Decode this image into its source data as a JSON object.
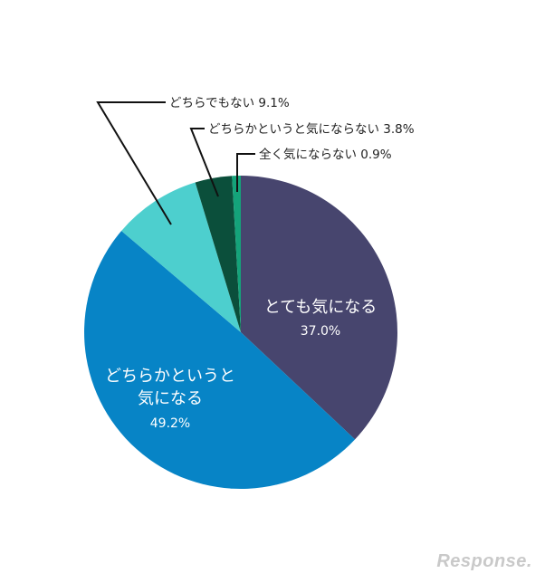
{
  "chart_data": {
    "type": "pie",
    "slices": [
      {
        "label": "とても気になる",
        "value": 37.0,
        "value_text": "37.0%",
        "color": "#47456e"
      },
      {
        "label": "どちらかというと気になる",
        "value": 49.2,
        "value_text": "49.2%",
        "color": "#0784c6"
      },
      {
        "label": "どちらでもない",
        "value": 9.1,
        "value_text": "9.1%",
        "color": "#4dcfce"
      },
      {
        "label": "どちらかというと気にならない",
        "value": 3.8,
        "value_text": "3.8%",
        "color": "#0b4f3b"
      },
      {
        "label": "全く気にならない",
        "value": 0.9,
        "value_text": "0.9%",
        "color": "#14a37a"
      }
    ],
    "inside_labels": {
      "slice0_line1": "とても気になる",
      "slice0_pct": "37.0%",
      "slice1_line1": "どちらかというと",
      "slice1_line2": "気になる",
      "slice1_pct": "49.2%"
    },
    "callouts": {
      "slice2": "どちらでもない  9.1%",
      "slice3": "どちらかというと気にならない  3.8%",
      "slice4": "全く気にならない  0.9%"
    }
  },
  "watermark": "Response."
}
